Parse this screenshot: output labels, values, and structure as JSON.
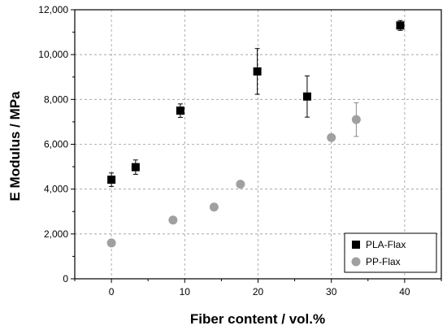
{
  "chart_data": {
    "type": "scatter",
    "xlabel": "Fiber content / vol.%",
    "ylabel": "E Modulus / MPa",
    "xlim": [
      -5,
      45
    ],
    "ylim": [
      0,
      12000
    ],
    "x_ticks": [
      0,
      10,
      20,
      30,
      40
    ],
    "x_tick_labels": [
      "0",
      "10",
      "20",
      "30",
      "40"
    ],
    "y_ticks": [
      0,
      2000,
      4000,
      6000,
      8000,
      10000,
      12000
    ],
    "y_tick_labels": [
      "0",
      "2,000",
      "4,000",
      "6,000",
      "8,000",
      "10,000",
      "12,000"
    ],
    "grid": true,
    "legend_position": "bottom-right",
    "series": [
      {
        "name": "PLA-Flax",
        "marker": "square",
        "color": "#000000",
        "points": [
          {
            "x": 0,
            "y": 4420,
            "err": 300
          },
          {
            "x": 3.3,
            "y": 4980,
            "err": 320
          },
          {
            "x": 9.4,
            "y": 7500,
            "err": 300
          },
          {
            "x": 19.9,
            "y": 9250,
            "err": 1020
          },
          {
            "x": 26.7,
            "y": 8130,
            "err": 920
          },
          {
            "x": 39.4,
            "y": 11300,
            "err": 220
          }
        ]
      },
      {
        "name": "PP-Flax",
        "marker": "circle",
        "color": "#a0a0a0",
        "points": [
          {
            "x": 0,
            "y": 1600,
            "err": 0
          },
          {
            "x": 8.4,
            "y": 2620,
            "err": 0
          },
          {
            "x": 14.0,
            "y": 3200,
            "err": 0
          },
          {
            "x": 17.6,
            "y": 4220,
            "err": 0
          },
          {
            "x": 30.0,
            "y": 6300,
            "err": 0
          },
          {
            "x": 33.4,
            "y": 7100,
            "err": 750
          }
        ]
      }
    ]
  }
}
